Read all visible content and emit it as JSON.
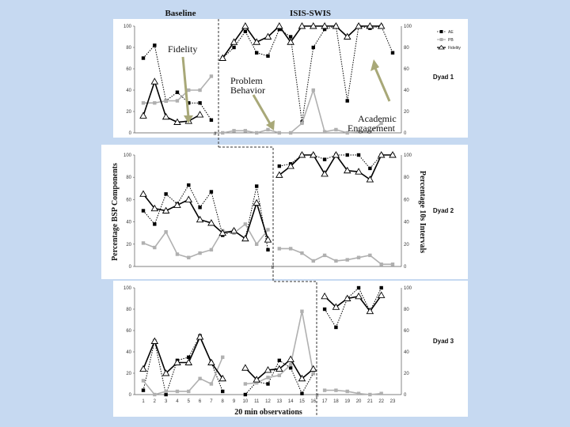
{
  "headers": {
    "baseline": "Baseline",
    "intervention": "ISIS-SWIS"
  },
  "annotations": {
    "fidelity": "Fidelity",
    "problem_behavior": "Problem Behavior",
    "academic_engagement": "Academic Engagement"
  },
  "axes": {
    "left": "Percentage BSP Components",
    "right": "Percentage 10s Intervals",
    "x": "20 min observations"
  },
  "legend": {
    "ae": "AE",
    "pb": "PB",
    "fidelity": "Fidelity"
  },
  "colors": {
    "page_bg": "#c6d9f1",
    "panel_bg": "#ffffff",
    "ae": "#000000",
    "pb": "#b0b0b0",
    "fidelity": "#000000",
    "arrow": "#a8a878",
    "phase_line": "#333333"
  },
  "chart_data": [
    {
      "type": "line",
      "title": "Dyad 1",
      "x": [
        1,
        2,
        3,
        4,
        5,
        6,
        7,
        8,
        9,
        10,
        11,
        12,
        13,
        14,
        15,
        16,
        17,
        18,
        19,
        20,
        21,
        22,
        23
      ],
      "phase_change_after": 7,
      "ylim": [
        0,
        100
      ],
      "series": [
        {
          "name": "AE",
          "values": [
            70,
            82,
            30,
            38,
            28,
            28,
            12,
            70,
            80,
            95,
            75,
            72,
            97,
            90,
            10,
            80,
            97,
            100,
            30,
            100,
            98,
            100,
            75
          ]
        },
        {
          "name": "PB",
          "values": [
            28,
            28,
            30,
            30,
            40,
            40,
            53,
            0,
            2,
            2,
            0,
            3,
            0,
            0,
            9,
            40,
            1,
            3,
            0,
            1,
            1,
            9,
            null
          ]
        },
        {
          "name": "Fidelity",
          "values": [
            16,
            48,
            15,
            10,
            11,
            17,
            null,
            70,
            85,
            100,
            85,
            90,
            100,
            85,
            100,
            100,
            100,
            100,
            90,
            100,
            100,
            100,
            null
          ]
        }
      ]
    },
    {
      "type": "line",
      "title": "Dyad 2",
      "x": [
        1,
        2,
        3,
        4,
        5,
        6,
        7,
        8,
        9,
        10,
        11,
        12,
        13,
        14,
        15,
        16,
        17,
        18,
        19,
        20,
        21,
        22,
        23
      ],
      "phase_change_after": 12,
      "ylim": [
        0,
        100
      ],
      "series": [
        {
          "name": "AE",
          "values": [
            50,
            38,
            65,
            56,
            73,
            53,
            67,
            28,
            32,
            25,
            72,
            15,
            90,
            92,
            100,
            100,
            96,
            100,
            100,
            100,
            88,
            100,
            100
          ]
        },
        {
          "name": "PB",
          "values": [
            21,
            17,
            31,
            11,
            8,
            12,
            15,
            32,
            30,
            38,
            20,
            33,
            16,
            16,
            12,
            5,
            10,
            5,
            6,
            8,
            10,
            2,
            2
          ]
        },
        {
          "name": "Fidelity",
          "values": [
            65,
            52,
            50,
            55,
            60,
            42,
            39,
            30,
            32,
            25,
            57,
            24,
            82,
            90,
            100,
            100,
            83,
            100,
            86,
            85,
            78,
            100,
            100
          ]
        }
      ]
    },
    {
      "type": "line",
      "title": "Dyad 3",
      "x": [
        1,
        2,
        3,
        4,
        5,
        6,
        7,
        8,
        9,
        10,
        11,
        12,
        13,
        14,
        15,
        16,
        17,
        18,
        19,
        20,
        21,
        22,
        23
      ],
      "phase_change_after": 16,
      "ylim": [
        0,
        100
      ],
      "series": [
        {
          "name": "AE",
          "values": [
            4,
            50,
            0,
            32,
            35,
            55,
            30,
            3,
            null,
            0,
            12,
            10,
            32,
            25,
            1,
            20,
            80,
            63,
            90,
            100,
            78,
            100,
            null
          ]
        },
        {
          "name": "PB",
          "values": [
            13,
            0,
            3,
            3,
            3,
            15,
            10,
            35,
            null,
            10,
            11,
            16,
            18,
            28,
            78,
            20,
            4,
            4,
            3,
            1,
            0,
            1,
            null
          ]
        },
        {
          "name": "Fidelity",
          "values": [
            24,
            50,
            20,
            30,
            30,
            54,
            30,
            15,
            null,
            25,
            14,
            23,
            24,
            33,
            15,
            24,
            92,
            82,
            90,
            92,
            78,
            93,
            null
          ]
        }
      ]
    }
  ],
  "x_ticks": [
    "1",
    "2",
    "3",
    "4",
    "5",
    "6",
    "7",
    "8",
    "9",
    "10",
    "11",
    "12",
    "13",
    "14",
    "15",
    "16",
    "17",
    "18",
    "19",
    "20",
    "21",
    "22",
    "23"
  ],
  "y_ticks": [
    "0",
    "20",
    "40",
    "60",
    "80",
    "100"
  ]
}
